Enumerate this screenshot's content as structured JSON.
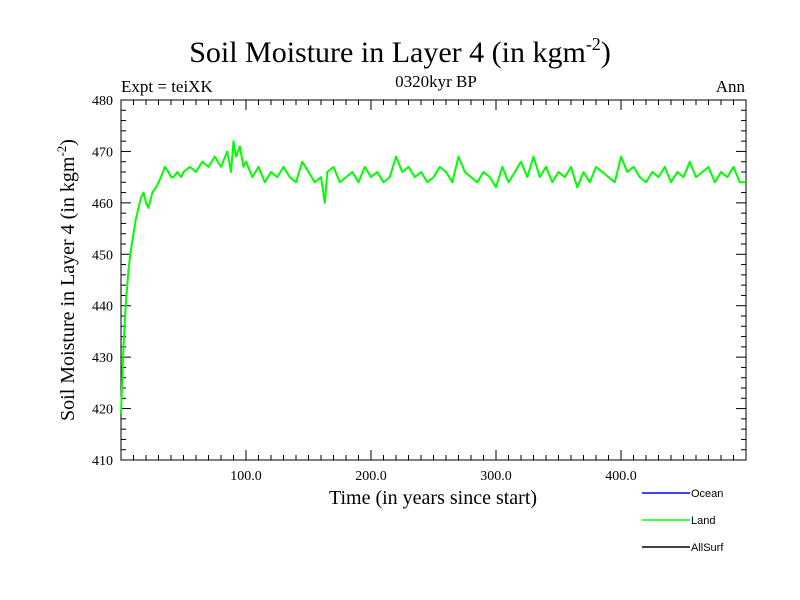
{
  "header": {
    "title": "Soil Moisture in Layer 4 (in kgm",
    "title_sup": "-2",
    "title_close": ")",
    "subtitle_center": "0320kyr BP",
    "subtitle_left": "Expt = teiXK",
    "subtitle_right": "Ann"
  },
  "chart_data": {
    "type": "line",
    "xlabel": "Time (in years since start)",
    "ylabel": "Soil Moisture in Layer 4 (in kgm",
    "ylabel_sup": "-2",
    "ylabel_close": ")",
    "xlim": [
      0,
      500
    ],
    "ylim": [
      410,
      480
    ],
    "x_ticks": [
      {
        "value": 100,
        "label": "100.0"
      },
      {
        "value": 200,
        "label": "200.0"
      },
      {
        "value": 300,
        "label": "300.0"
      },
      {
        "value": 400,
        "label": "400.0"
      }
    ],
    "y_ticks": [
      {
        "value": 410,
        "label": "410"
      },
      {
        "value": 420,
        "label": "420"
      },
      {
        "value": 430,
        "label": "430"
      },
      {
        "value": 440,
        "label": "440"
      },
      {
        "value": 450,
        "label": "450"
      },
      {
        "value": 460,
        "label": "460"
      },
      {
        "value": 470,
        "label": "470"
      },
      {
        "value": 480,
        "label": "480"
      }
    ],
    "legend_placement": "bottom-right",
    "series": [
      {
        "name": "Ocean",
        "color": "#0000ff",
        "x": [],
        "y": []
      },
      {
        "name": "Land",
        "color": "#00ff00",
        "x": [
          0,
          1,
          2,
          3,
          4,
          5,
          6,
          8,
          10,
          12,
          14,
          16,
          18,
          20,
          22,
          25,
          28,
          30,
          32,
          35,
          38,
          40,
          42,
          45,
          48,
          50,
          55,
          60,
          65,
          70,
          75,
          80,
          85,
          88,
          90,
          92,
          95,
          98,
          100,
          105,
          110,
          115,
          120,
          125,
          130,
          135,
          140,
          145,
          150,
          155,
          160,
          163,
          165,
          170,
          175,
          180,
          185,
          190,
          195,
          200,
          205,
          210,
          215,
          220,
          225,
          230,
          235,
          240,
          245,
          250,
          255,
          260,
          265,
          270,
          275,
          280,
          285,
          290,
          295,
          300,
          305,
          310,
          315,
          320,
          325,
          330,
          335,
          340,
          345,
          350,
          355,
          360,
          365,
          370,
          375,
          380,
          385,
          390,
          395,
          400,
          405,
          410,
          415,
          420,
          425,
          430,
          435,
          440,
          445,
          450,
          455,
          460,
          465,
          470,
          475,
          480,
          485,
          490,
          495,
          500
        ],
        "y": [
          419,
          426,
          432,
          437,
          441,
          444,
          447,
          451,
          454,
          457,
          459,
          461,
          462,
          460,
          459,
          462,
          463,
          464,
          465,
          467,
          466,
          465,
          465,
          466,
          465,
          466,
          467,
          466,
          468,
          467,
          469,
          467,
          470,
          466,
          472,
          469,
          471,
          467,
          468,
          465,
          467,
          464,
          466,
          465,
          467,
          465,
          464,
          468,
          466,
          464,
          465,
          460,
          466,
          467,
          464,
          465,
          466,
          464,
          467,
          465,
          466,
          464,
          465,
          469,
          466,
          467,
          465,
          466,
          464,
          465,
          467,
          466,
          464,
          469,
          466,
          465,
          464,
          466,
          465,
          463,
          467,
          464,
          466,
          468,
          465,
          469,
          465,
          467,
          464,
          466,
          465,
          467,
          463,
          466,
          464,
          467,
          466,
          465,
          464,
          469,
          466,
          467,
          465,
          464,
          466,
          465,
          467,
          464,
          466,
          465,
          468,
          465,
          466,
          467,
          464,
          466,
          465,
          467,
          464,
          464
        ]
      },
      {
        "name": "AllSurf",
        "color": "#000000",
        "x": [],
        "y": []
      }
    ]
  }
}
